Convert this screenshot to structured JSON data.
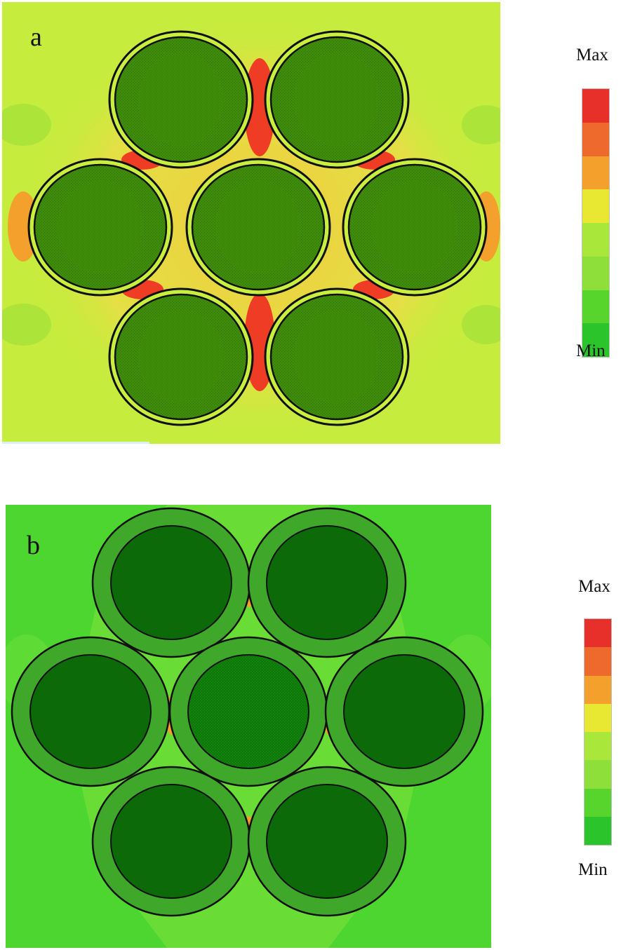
{
  "panels": [
    {
      "letter": "a",
      "legend": {
        "max_label": "Max",
        "min_label": "Min"
      }
    },
    {
      "letter": "b",
      "legend": {
        "max_label": "Max",
        "min_label": "Min"
      }
    }
  ],
  "colors": {
    "legend_scale_top_to_bottom": [
      "#e8302a",
      "#ee6a2c",
      "#f3a12c",
      "#e8e833",
      "#a9e83a",
      "#8fdf3a",
      "#58d52c",
      "#2bc42a"
    ],
    "cylinder_core": "#3f8c0a",
    "cylinder_core_b": "#0c6b08",
    "ring_b": "#3fa82a",
    "background_a": "#c6ec3d",
    "background_b": "#4ed630",
    "hotspot": "#ee3c25"
  }
}
